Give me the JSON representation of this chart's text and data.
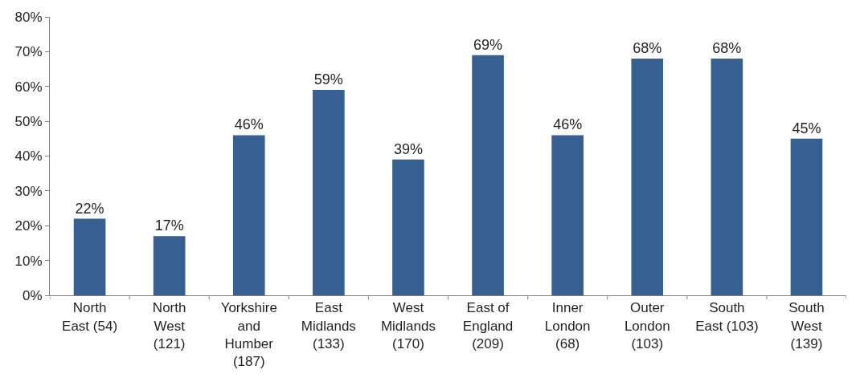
{
  "chart_data": {
    "type": "bar",
    "categories": [
      "North\nEast (54)",
      "North\nWest\n(121)",
      "Yorkshire\nand\nHumber\n(187)",
      "East\nMidlands\n(133)",
      "West\nMidlands\n(170)",
      "East of\nEngland\n(209)",
      "Inner\nLondon\n(68)",
      "Outer\nLondon\n(103)",
      "South\nEast (103)",
      "South\nWest\n(139)"
    ],
    "values": [
      22,
      17,
      46,
      59,
      39,
      69,
      46,
      68,
      68,
      45
    ],
    "value_labels": [
      "22%",
      "17%",
      "46%",
      "59%",
      "39%",
      "69%",
      "46%",
      "68%",
      "68%",
      "45%"
    ],
    "color": "#366092",
    "ylim": [
      0,
      80
    ],
    "yticks": [
      {
        "value": 0,
        "label": "0%"
      },
      {
        "value": 10,
        "label": "10%"
      },
      {
        "value": 20,
        "label": "20%"
      },
      {
        "value": 30,
        "label": "30%"
      },
      {
        "value": 40,
        "label": "40%"
      },
      {
        "value": 50,
        "label": "50%"
      },
      {
        "value": 60,
        "label": "60%"
      },
      {
        "value": 70,
        "label": "70%"
      },
      {
        "value": 80,
        "label": "80%"
      }
    ],
    "legend": false
  }
}
